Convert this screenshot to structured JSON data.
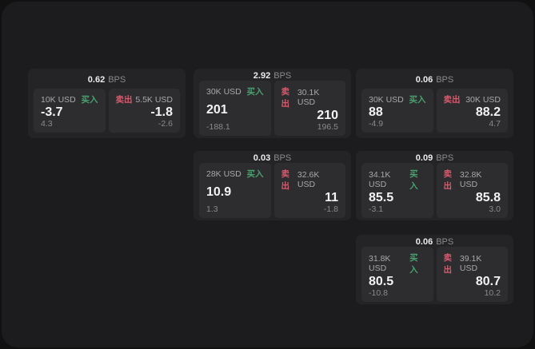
{
  "labels": {
    "bps": "BPS",
    "buy": "买入",
    "sell": "卖出"
  },
  "colors": {
    "buy_green": "#4aa06e",
    "sell_red": "#d75a6e",
    "surface": "#1c1c1e",
    "card": "#242426",
    "panel": "#2d2d2f"
  },
  "cards": [
    {
      "bps": "0.62",
      "buy": {
        "amount": "10K USD",
        "value": "-3.7",
        "delta": "4.3"
      },
      "sell": {
        "amount": "5.5K USD",
        "value": "-1.8",
        "delta": "-2.6"
      }
    },
    {
      "bps": "2.92",
      "buy": {
        "amount": "30K USD",
        "value": "201",
        "delta": "-188.1"
      },
      "sell": {
        "amount": "30.1K USD",
        "value": "210",
        "delta": "196.5"
      }
    },
    {
      "bps": "0.06",
      "buy": {
        "amount": "30K USD",
        "value": "88",
        "delta": "-4.9"
      },
      "sell": {
        "amount": "30K USD",
        "value": "88.2",
        "delta": "4.7"
      }
    },
    {
      "bps": "0.03",
      "buy": {
        "amount": "28K USD",
        "value": "10.9",
        "delta": "1.3"
      },
      "sell": {
        "amount": "32.6K USD",
        "value": "11",
        "delta": "-1.8"
      }
    },
    {
      "bps": "0.09",
      "buy": {
        "amount": "34.1K USD",
        "value": "85.5",
        "delta": "-3.1"
      },
      "sell": {
        "amount": "32.8K USD",
        "value": "85.8",
        "delta": "3.0"
      }
    },
    {
      "bps": "0.06",
      "buy": {
        "amount": "31.8K USD",
        "value": "80.5",
        "delta": "-10.8"
      },
      "sell": {
        "amount": "39.1K USD",
        "value": "80.7",
        "delta": "10.2"
      }
    }
  ]
}
